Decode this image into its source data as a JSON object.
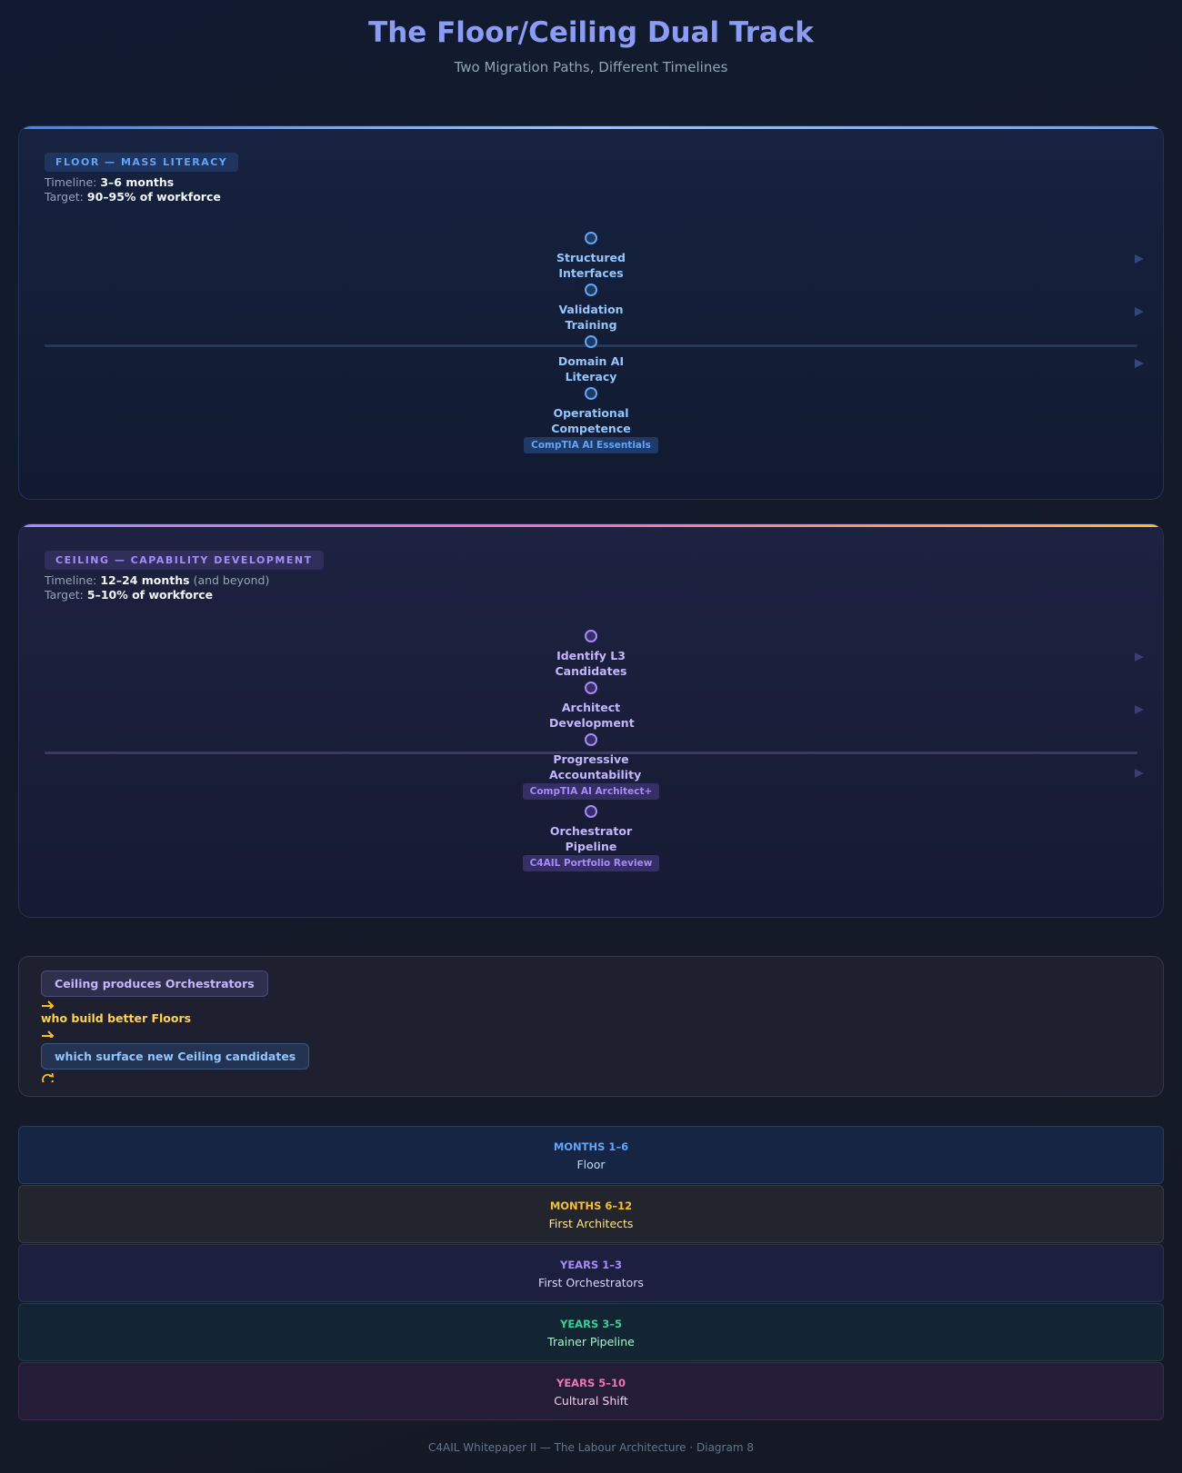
{
  "header": {
    "title": "The Floor/Ceiling Dual Track",
    "subtitle": "Two Migration Paths, Different Timelines"
  },
  "floor": {
    "badge": "FLOOR — MASS LITERACY",
    "timeline_label": "Timeline:",
    "timeline": "3–6 months",
    "target_label": "Target:",
    "target": "90–95% of workforce",
    "steps": [
      {
        "label": "Structured Interfaces"
      },
      {
        "label": "Validation Training"
      },
      {
        "label": "Domain AI Literacy"
      },
      {
        "label": "Operational Competence",
        "cert": "CompTIA AI Essentials"
      }
    ]
  },
  "ceiling": {
    "badge": "CEILING — CAPABILITY DEVELOPMENT",
    "timeline_label": "Timeline:",
    "timeline": "12–24 months",
    "timeline_note": "(and beyond)",
    "target_label": "Target:",
    "target": "5–10% of workforce",
    "steps": [
      {
        "label": "Identify L3 Candidates"
      },
      {
        "label": "Architect Development"
      },
      {
        "label": "Progressive Accountability",
        "cert": "CompTIA AI Architect+"
      },
      {
        "label": "Orchestrator Pipeline",
        "cert": "C4AIL Portfolio Review"
      }
    ]
  },
  "cycle": {
    "items": [
      "Ceiling produces Orchestrators",
      "who build better Floors",
      "which surface new Ceiling candidates"
    ]
  },
  "phases": [
    {
      "period": "MONTHS 1–6",
      "label": "Floor"
    },
    {
      "period": "MONTHS 6–12",
      "label": "First Architects"
    },
    {
      "period": "YEARS 1–3",
      "label": "First Orchestrators"
    },
    {
      "period": "YEARS 3–5",
      "label": "Trainer Pipeline"
    },
    {
      "period": "YEARS 5–10",
      "label": "Cultural Shift"
    }
  ],
  "footer": "C4AIL Whitepaper II — The Labour Architecture · Diagram 8"
}
